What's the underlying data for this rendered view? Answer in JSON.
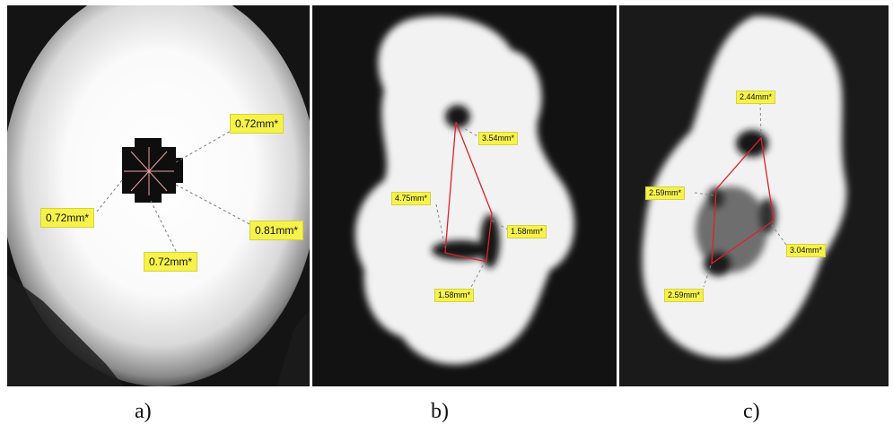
{
  "panels": [
    {
      "caption": "a)",
      "labels": [
        "0.72mm*",
        "0.72mm*",
        "0.81mm*",
        "0.72mm*"
      ]
    },
    {
      "caption": "b)",
      "labels": [
        "3.54mm*",
        "4.75mm*",
        "1.58mm*",
        "1.58mm*"
      ]
    },
    {
      "caption": "c)",
      "labels": [
        "2.44mm*",
        "2.59mm*",
        "3.04mm*",
        "2.59mm*"
      ]
    }
  ],
  "colors": {
    "label_bg": "#f6f24a",
    "measure_line": "#e0202a",
    "background": "#0d0d0d",
    "tooth": "#f3f3f3"
  }
}
